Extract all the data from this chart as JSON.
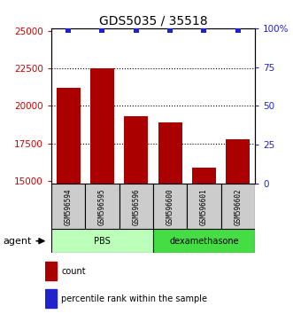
{
  "title": "GDS5035 / 35518",
  "samples": [
    "GSM596594",
    "GSM596595",
    "GSM596596",
    "GSM596600",
    "GSM596601",
    "GSM596602"
  ],
  "counts": [
    21200,
    22550,
    19300,
    18900,
    15900,
    17750
  ],
  "percentile_ranks": [
    99,
    99,
    99,
    99,
    99,
    99
  ],
  "ylim_left": [
    14800,
    25200
  ],
  "ylim_right": [
    0,
    100
  ],
  "yticks_left": [
    15000,
    17500,
    20000,
    22500,
    25000
  ],
  "yticks_right": [
    0,
    25,
    50,
    75,
    100
  ],
  "ytick_labels_left": [
    "15000",
    "17500",
    "20000",
    "22500",
    "25000"
  ],
  "ytick_labels_right": [
    "0",
    "25",
    "50",
    "75",
    "100%"
  ],
  "bar_color": "#aa0000",
  "dot_color": "#2222cc",
  "bar_width": 0.7,
  "groups": [
    {
      "label": "PBS",
      "samples": [
        0,
        1,
        2
      ],
      "color": "#bbffbb"
    },
    {
      "label": "dexamethasone",
      "samples": [
        3,
        4,
        5
      ],
      "color": "#44dd44"
    }
  ],
  "agent_label": "agent",
  "legend_count_label": "count",
  "legend_pct_label": "percentile rank within the sample",
  "sample_box_color": "#cccccc",
  "xlabel_color": "#cc0000",
  "ylabel_right_color": "#2222cc"
}
